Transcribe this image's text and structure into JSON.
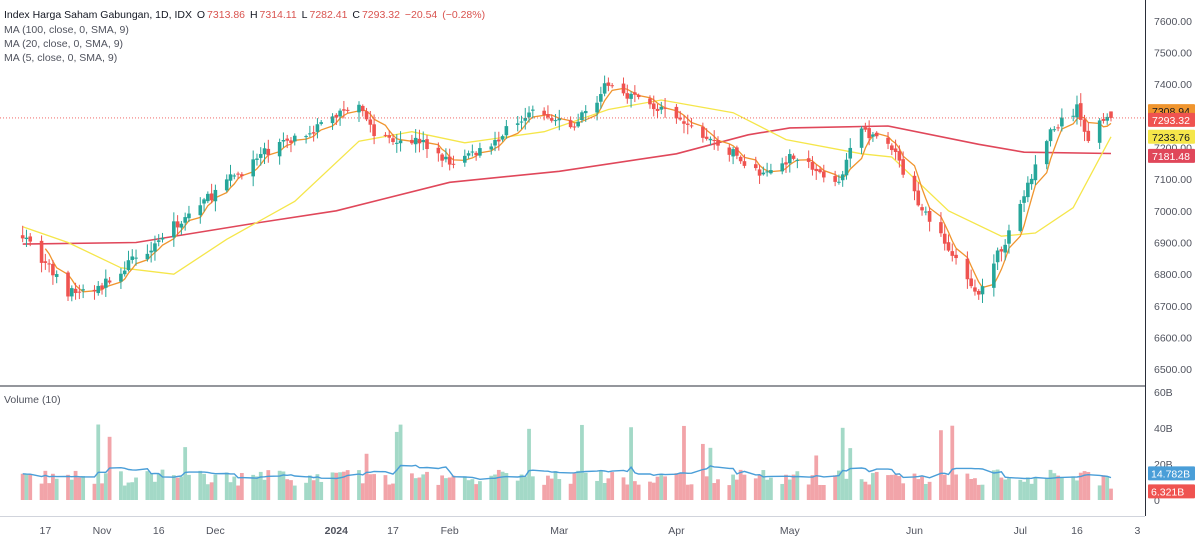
{
  "chart_data": [
    {
      "type": "candlestick",
      "title": "Index Harga Saham Gabungan, 1D, IDX",
      "ohlc_header": {
        "open_label": "O",
        "open": "7313.86",
        "high_label": "H",
        "high": "7314.11",
        "low_label": "L",
        "low": "7282.41",
        "close_label": "C",
        "close": "7293.32",
        "change": "−20.54",
        "change_pct": "(−0.28%)"
      },
      "indicators": [
        {
          "label": "MA (100, close, 0, SMA, 9)",
          "color": "#e0475a",
          "last": "7181.48"
        },
        {
          "label": "MA (20, close, 0, SMA, 9)",
          "color": "#f5e64a",
          "last": "7233.76"
        },
        {
          "label": "MA (5, close, 0, SMA, 9)",
          "color": "#f0952e",
          "last": "7308.94"
        }
      ],
      "last_price": "7293.32",
      "ylim": [
        6450,
        7650
      ],
      "y_ticks": [
        "7600.00",
        "7500.00",
        "7400.00",
        "7300.00",
        "7200.00",
        "7100.00",
        "7000.00",
        "6900.00",
        "6800.00",
        "6700.00",
        "6600.00",
        "6500.00"
      ],
      "x_ticks": [
        "17",
        "Nov",
        "16",
        "Dec",
        "2024",
        "17",
        "Feb",
        "Mar",
        "Apr",
        "May",
        "Jun",
        "Jul",
        "16",
        "3"
      ],
      "anchors": [
        {
          "date": "2023-10-11",
          "close": 6930
        },
        {
          "date": "2023-10-23",
          "close": 6740
        },
        {
          "date": "2023-10-31",
          "close": 6752
        },
        {
          "date": "2023-11-08",
          "close": 6830
        },
        {
          "date": "2023-11-20",
          "close": 6950
        },
        {
          "date": "2023-12-04",
          "close": 7090
        },
        {
          "date": "2023-12-15",
          "close": 7190
        },
        {
          "date": "2023-12-29",
          "close": 7272
        },
        {
          "date": "2024-01-08",
          "close": 7350
        },
        {
          "date": "2024-01-12",
          "close": 7240
        },
        {
          "date": "2024-01-24",
          "close": 7220
        },
        {
          "date": "2024-02-01",
          "close": 7150
        },
        {
          "date": "2024-02-12",
          "close": 7210
        },
        {
          "date": "2024-02-22",
          "close": 7320
        },
        {
          "date": "2024-03-04",
          "close": 7260
        },
        {
          "date": "2024-03-14",
          "close": 7400
        },
        {
          "date": "2024-03-26",
          "close": 7330
        },
        {
          "date": "2024-04-16",
          "close": 7180
        },
        {
          "date": "2024-04-24",
          "close": 7110
        },
        {
          "date": "2024-05-02",
          "close": 7180
        },
        {
          "date": "2024-05-13",
          "close": 7080
        },
        {
          "date": "2024-05-20",
          "close": 7260
        },
        {
          "date": "2024-05-28",
          "close": 7200
        },
        {
          "date": "2024-06-03",
          "close": 7050
        },
        {
          "date": "2024-06-12",
          "close": 6880
        },
        {
          "date": "2024-06-19",
          "close": 6730
        },
        {
          "date": "2024-06-26",
          "close": 6880
        },
        {
          "date": "2024-07-02",
          "close": 7050
        },
        {
          "date": "2024-07-09",
          "close": 7250
        },
        {
          "date": "2024-07-16",
          "close": 7320
        },
        {
          "date": "2024-07-19",
          "close": 7230
        },
        {
          "date": "2024-07-24",
          "close": 7313
        },
        {
          "date": "2024-07-25",
          "close": 7293
        }
      ],
      "ma100_line": [
        {
          "date": "2023-10-11",
          "value": 6895
        },
        {
          "date": "2023-11-10",
          "value": 6900
        },
        {
          "date": "2023-12-11",
          "value": 6960
        },
        {
          "date": "2024-01-02",
          "value": 7000
        },
        {
          "date": "2024-02-01",
          "value": 7090
        },
        {
          "date": "2024-03-01",
          "value": 7125
        },
        {
          "date": "2024-04-01",
          "value": 7180
        },
        {
          "date": "2024-04-20",
          "value": 7240
        },
        {
          "date": "2024-05-01",
          "value": 7262
        },
        {
          "date": "2024-05-27",
          "value": 7268
        },
        {
          "date": "2024-06-20",
          "value": 7210
        },
        {
          "date": "2024-07-02",
          "value": 7185
        },
        {
          "date": "2024-07-25",
          "value": 7181
        }
      ],
      "ma20_line": [
        {
          "date": "2023-10-11",
          "value": 6950
        },
        {
          "date": "2023-10-23",
          "value": 6900
        },
        {
          "date": "2023-11-06",
          "value": 6820
        },
        {
          "date": "2023-11-20",
          "value": 6800
        },
        {
          "date": "2023-12-04",
          "value": 6910
        },
        {
          "date": "2023-12-22",
          "value": 7030
        },
        {
          "date": "2024-01-08",
          "value": 7220
        },
        {
          "date": "2024-01-22",
          "value": 7250
        },
        {
          "date": "2024-02-05",
          "value": 7215
        },
        {
          "date": "2024-02-26",
          "value": 7250
        },
        {
          "date": "2024-03-14",
          "value": 7320
        },
        {
          "date": "2024-03-28",
          "value": 7350
        },
        {
          "date": "2024-04-16",
          "value": 7310
        },
        {
          "date": "2024-04-30",
          "value": 7225
        },
        {
          "date": "2024-05-20",
          "value": 7180
        },
        {
          "date": "2024-05-28",
          "value": 7170
        },
        {
          "date": "2024-06-12",
          "value": 7000
        },
        {
          "date": "2024-06-26",
          "value": 6920
        },
        {
          "date": "2024-07-05",
          "value": 6930
        },
        {
          "date": "2024-07-15",
          "value": 7010
        },
        {
          "date": "2024-07-25",
          "value": 7233.76
        }
      ]
    },
    {
      "type": "volume",
      "title": "Volume (10)",
      "ylim": [
        0,
        60
      ],
      "unit": "B",
      "y_ticks": [
        "60B",
        "40B",
        "20B",
        "0"
      ],
      "last_volume": "6.321B",
      "last_ma": "14.782B",
      "volume_ma_color": "#4a9ed8"
    }
  ],
  "colors": {
    "up": "#26a69a",
    "down": "#ef5350",
    "up_vol": "#a3d9c7",
    "down_vol": "#f2a4a9"
  }
}
